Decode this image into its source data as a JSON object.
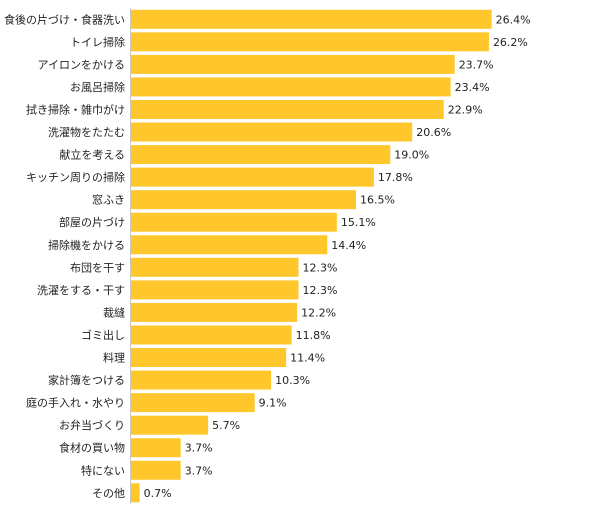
{
  "chart_data": {
    "type": "bar",
    "orientation": "horizontal",
    "title": "",
    "xlabel": "",
    "ylabel": "",
    "value_suffix": "%",
    "xlim": [
      0,
      30
    ],
    "grid": false,
    "legend": "none",
    "bar_color": "#ffc72c",
    "categories": [
      "食後の片づけ・食器洗い",
      "トイレ掃除",
      "アイロンをかける",
      "お風呂掃除",
      "拭き掃除・雑巾がけ",
      "洗濯物をたたむ",
      "献立を考える",
      "キッチン周りの掃除",
      "窓ふき",
      "部屋の片づけ",
      "掃除機をかける",
      "布団を干す",
      "洗濯をする・干す",
      "裁縫",
      "ゴミ出し",
      "料理",
      "家計簿をつける",
      "庭の手入れ・水やり",
      "お弁当づくり",
      "食材の買い物",
      "特にない",
      "その他"
    ],
    "values": [
      26.4,
      26.2,
      23.7,
      23.4,
      22.9,
      20.6,
      19.0,
      17.8,
      16.5,
      15.1,
      14.4,
      12.3,
      12.3,
      12.2,
      11.8,
      11.4,
      10.3,
      9.1,
      5.7,
      3.7,
      3.7,
      0.7
    ],
    "labels": [
      "26.4%",
      "26.2%",
      "23.7%",
      "23.4%",
      "22.9%",
      "20.6%",
      "19.0%",
      "17.8%",
      "16.5%",
      "15.1%",
      "14.4%",
      "12.3%",
      "12.3%",
      "12.2%",
      "11.8%",
      "11.4%",
      "10.3%",
      "9.1%",
      "5.7%",
      "3.7%",
      "3.7%",
      "0.7%"
    ]
  }
}
